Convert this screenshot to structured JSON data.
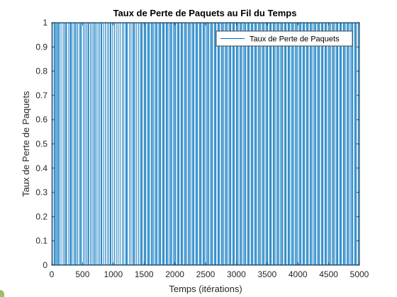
{
  "chart_data": {
    "type": "line",
    "title": "Taux de Perte de Paquets au Fil du Temps",
    "xlabel": "Temps (itérations)",
    "ylabel": "Taux de Perte de Paquets",
    "xlim": [
      0,
      5000
    ],
    "ylim": [
      0,
      1
    ],
    "x_ticks": [
      0,
      500,
      1000,
      1500,
      2000,
      2500,
      3000,
      3500,
      4000,
      4500,
      5000
    ],
    "y_ticks": [
      0,
      0.1,
      0.2,
      0.3,
      0.4,
      0.5,
      0.6,
      0.7,
      0.8,
      0.9,
      1
    ],
    "grid": false,
    "box": true,
    "legend_position": "top-right",
    "series": [
      {
        "name": "Taux de Perte de Paquets",
        "color": "#0072BD",
        "value_levels": [
          0,
          1
        ],
        "loss_event_iterations": [
          15,
          40,
          70,
          90,
          120,
          150,
          185,
          210,
          240,
          275,
          300,
          330,
          360,
          380,
          420,
          450,
          480,
          515,
          540,
          565,
          600,
          630,
          655,
          680,
          720,
          750,
          775,
          800,
          840,
          870,
          900,
          925,
          960,
          990,
          1020,
          1050,
          1080,
          1110,
          1145,
          1170,
          1200,
          1230,
          1265,
          1290,
          1320,
          1350,
          1380,
          1410,
          1440,
          1470,
          1500,
          1530,
          1560,
          1590,
          1620,
          1650,
          1680,
          1710,
          1740,
          1770,
          1800,
          1830,
          1860,
          1890,
          1920,
          1950,
          1980,
          2010,
          2040,
          2070,
          2100,
          2130,
          2160,
          2190,
          2220,
          2250,
          2280,
          2310,
          2340,
          2370,
          2400,
          2430,
          2460,
          2490,
          2520,
          2550,
          2580,
          2610,
          2640,
          2670,
          2700,
          2730,
          2760,
          2790,
          2820,
          2850,
          2880,
          2910,
          2940,
          2970,
          3000,
          3030,
          3060,
          3090,
          3120,
          3150,
          3180,
          3210,
          3240,
          3270,
          3300,
          3330,
          3360,
          3390,
          3420,
          3450,
          3480,
          3510,
          3540,
          3570,
          3600,
          3630,
          3660,
          3690,
          3720,
          3750,
          3780,
          3810,
          3840,
          3870,
          3900,
          3930,
          3960,
          3990,
          4020,
          4050,
          4080,
          4110,
          4140,
          4170,
          4200,
          4230,
          4260,
          4290,
          4320,
          4350,
          4380,
          4410,
          4440,
          4470,
          4500,
          4530,
          4560,
          4590,
          4620,
          4650,
          4680,
          4710,
          4740,
          4770,
          4800,
          4830,
          4860,
          4890,
          4920,
          4950,
          4980
        ],
        "loss_event_iterations_extra": [
          55,
          105,
          230,
          310,
          395,
          470,
          590,
          700,
          810,
          950,
          1215,
          1335,
          1455,
          1515,
          1575,
          1635,
          1695,
          1755,
          1815,
          1875,
          1935,
          1995,
          2055,
          2115,
          2175,
          2235,
          2295,
          2355,
          2415,
          2475,
          2535,
          2595,
          2655,
          2715,
          2775,
          2835,
          2895,
          2955,
          3015,
          3075,
          3135,
          3195,
          3255,
          3315,
          3375,
          3435,
          3495,
          3555,
          3615,
          3675,
          3735,
          3795,
          3855,
          3915,
          3975,
          4035,
          4095,
          4155,
          4215,
          4275,
          4335,
          4395,
          4455,
          4515,
          4575,
          4635,
          4695,
          4755,
          4815,
          4875,
          4935,
          4995
        ]
      }
    ]
  }
}
